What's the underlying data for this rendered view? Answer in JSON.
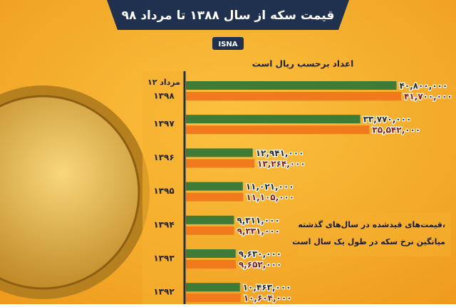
{
  "title": "قیمت سکه از سال ۱۳۸۸ تا مرداد ۹۸",
  "source": "ISNA",
  "chart_data": {
    "type": "bar",
    "orientation": "horizontal",
    "subtitle": "اعداد برحسب ریال است",
    "date_label": "۱۲ مرداد",
    "categories": [
      "۱۳۹۸",
      "۱۳۹۷",
      "۱۳۹۶",
      "۱۳۹۵",
      "۱۳۹۴",
      "۱۳۹۳",
      "۱۳۹۲"
    ],
    "series": [
      {
        "color": "#3e7b37",
        "label_color": "#2a2a2a",
        "values": [
          40800000,
          33770000,
          12941000,
          11021000,
          9311000,
          9630000,
          10463000
        ],
        "value_labels": [
          "۴۰,۸۰۰,۰۰۰",
          "۳۳,۷۷۰,۰۰۰",
          "۱۲,۹۴۱,۰۰۰",
          "۱۱,۰۲۱,۰۰۰",
          "۹,۳۱۱,۰۰۰",
          "۹,۶۳۰,۰۰۰",
          "۱۰,۴۶۳,۰۰۰"
        ]
      },
      {
        "color": "#f07a1c",
        "label_color": "#8b1a10",
        "values": [
          41700000,
          35542000,
          13264000,
          11105000,
          9331000,
          9652000,
          10604000
        ],
        "value_labels": [
          "۴۱,۷۰۰,۰۰۰",
          "۳۵,۵۴۲,۰۰۰",
          "۱۳,۲۶۴,۰۰۰",
          "۱۱,۱۰۵,۰۰۰",
          "۹,۳۳۱,۰۰۰",
          "۹,۶۵۲,۰۰۰",
          "۱۰,۶۰۴,۰۰۰"
        ]
      }
    ],
    "annotation": [
      "قیمت‌های قیدشده در سال‌های گذشته،",
      "میانگین نرخ سکه در طول یک سال است"
    ]
  }
}
